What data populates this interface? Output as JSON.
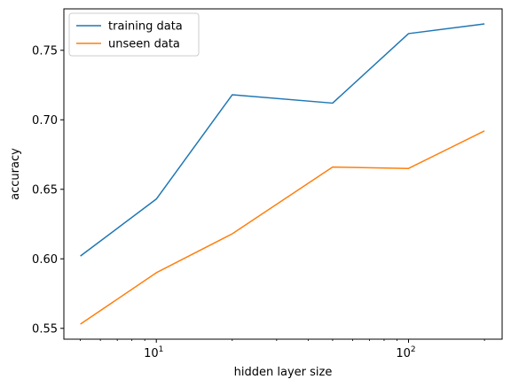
{
  "chart_data": {
    "type": "line",
    "x_scale": "log",
    "x": [
      5,
      10,
      20,
      50,
      100,
      200
    ],
    "series": [
      {
        "name": "training data",
        "color": "#1f77b4",
        "values": [
          0.602,
          0.643,
          0.718,
          0.712,
          0.762,
          0.769
        ]
      },
      {
        "name": "unseen data",
        "color": "#ff7f0e",
        "values": [
          0.553,
          0.59,
          0.618,
          0.666,
          0.665,
          0.692
        ]
      }
    ],
    "xlabel": "hidden layer size",
    "ylabel": "accuracy",
    "xlim": [
      4.3,
      235
    ],
    "ylim": [
      0.5422,
      0.7798
    ],
    "yticks": [
      {
        "value": 0.55,
        "label": "0.55"
      },
      {
        "value": 0.6,
        "label": "0.60"
      },
      {
        "value": 0.65,
        "label": "0.65"
      },
      {
        "value": 0.7,
        "label": "0.70"
      },
      {
        "value": 0.75,
        "label": "0.75"
      }
    ],
    "xticks": [
      {
        "value": 10,
        "base": "10",
        "exp": "1"
      },
      {
        "value": 100,
        "base": "10",
        "exp": "2"
      }
    ],
    "x_minor_ticks": [
      5,
      6,
      7,
      8,
      9,
      20,
      30,
      40,
      50,
      60,
      70,
      80,
      90,
      200
    ],
    "legend_position": "top-left",
    "grid": false
  }
}
